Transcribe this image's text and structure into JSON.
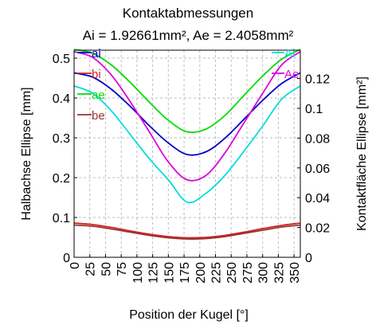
{
  "chart_data": {
    "type": "line",
    "title": "Kontaktabmessungen",
    "subtitle": "Ai = 1.92661mm², Ae = 2.4058mm²",
    "xlabel": "Position der Kugel [°]",
    "ylabel": "Halbachse Ellipse [mm]",
    "y2label": "Kontaktfläche Ellipse [mm²]",
    "xlim": [
      0,
      360
    ],
    "ylim": [
      0,
      0.52
    ],
    "y2lim": [
      0,
      0.139
    ],
    "grid": true,
    "x_ticks": [
      "0",
      "25",
      "50",
      "75",
      "100",
      "125",
      "150",
      "175",
      "200",
      "225",
      "250",
      "275",
      "300",
      "325",
      "350"
    ],
    "y_ticks": [
      "0",
      "0.1",
      "0.2",
      "0.3",
      "0.4",
      "0.5"
    ],
    "y2_ticks": [
      "0",
      "0.02",
      "0.04",
      "0.06",
      "0.08",
      "0.1",
      "0.12"
    ],
    "x": [
      0,
      30,
      60,
      90,
      120,
      150,
      180,
      210,
      240,
      270,
      300,
      330,
      360
    ],
    "series": [
      {
        "name": "ai",
        "axis": "left",
        "color": "#0000cc",
        "values": [
          0.463,
          0.452,
          0.421,
          0.378,
          0.33,
          0.287,
          0.258,
          0.265,
          0.299,
          0.346,
          0.394,
          0.436,
          0.463
        ]
      },
      {
        "name": "bi",
        "axis": "left",
        "color": "#cc2222",
        "values": [
          0.086,
          0.082,
          0.075,
          0.066,
          0.058,
          0.052,
          0.049,
          0.05,
          0.055,
          0.063,
          0.072,
          0.08,
          0.086
        ]
      },
      {
        "name": "ae",
        "axis": "left",
        "color": "#00dd00",
        "values": [
          0.522,
          0.512,
          0.482,
          0.438,
          0.389,
          0.344,
          0.315,
          0.322,
          0.356,
          0.406,
          0.455,
          0.497,
          0.522
        ]
      },
      {
        "name": "be",
        "axis": "left",
        "color": "#993333",
        "values": [
          0.081,
          0.078,
          0.071,
          0.063,
          0.055,
          0.049,
          0.046,
          0.047,
          0.052,
          0.06,
          0.068,
          0.076,
          0.081
        ]
      },
      {
        "name": "Ai",
        "axis": "right",
        "color": "#00dddd",
        "values": [
          0.115,
          0.11,
          0.098,
          0.082,
          0.066,
          0.052,
          0.037,
          0.043,
          0.055,
          0.071,
          0.088,
          0.106,
          0.115
        ]
      },
      {
        "name": "Ae",
        "axis": "right",
        "color": "#dd00dd",
        "values": [
          0.138,
          0.134,
          0.122,
          0.104,
          0.084,
          0.064,
          0.052,
          0.055,
          0.07,
          0.09,
          0.11,
          0.129,
          0.138
        ]
      }
    ],
    "legend_left": [
      "ai",
      "bi",
      "ae",
      "be"
    ],
    "legend_right": [
      "Ai",
      "Ae"
    ]
  }
}
